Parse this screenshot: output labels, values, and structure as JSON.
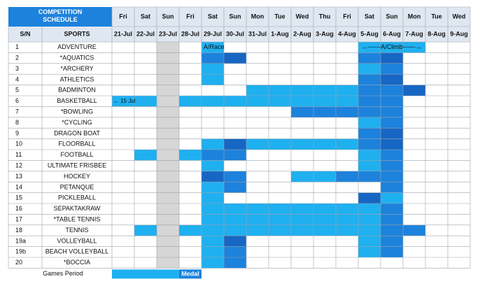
{
  "header": {
    "title": "COMPETITION SCHEDULE",
    "sn": "S/N",
    "sports": "SPORTS",
    "days": [
      "Fri",
      "Sat",
      "Sun",
      "Fri",
      "Sat",
      "Sun",
      "Mon",
      "Tue",
      "Wed",
      "Thu",
      "Fri",
      "Sat",
      "Sun",
      "Mon",
      "Tue",
      "Wed"
    ],
    "dates": [
      "21-Jul",
      "22-Jul",
      "23-Jul",
      "28-Jul",
      "29-Jul",
      "30-Jul",
      "31-Jul",
      "1-Aug",
      "2-Aug",
      "3-Aug",
      "4-Aug",
      "5-Aug",
      "6-Aug",
      "7-Aug",
      "8-Aug",
      "9-Aug"
    ]
  },
  "rows": [
    {
      "sn": "1",
      "sport": "ADVENTURE"
    },
    {
      "sn": "2",
      "sport": "*AQUATICS"
    },
    {
      "sn": "3",
      "sport": "*ARCHERY"
    },
    {
      "sn": "4",
      "sport": "ATHLETICS"
    },
    {
      "sn": "5",
      "sport": "BADMINTON"
    },
    {
      "sn": "6",
      "sport": "BASKETBALL"
    },
    {
      "sn": "7",
      "sport": "*BOWLING"
    },
    {
      "sn": "8",
      "sport": "*CYCLING"
    },
    {
      "sn": "9",
      "sport": "DRAGON BOAT"
    },
    {
      "sn": "10",
      "sport": "FLOORBALL"
    },
    {
      "sn": "11",
      "sport": "FOOTBALL"
    },
    {
      "sn": "12",
      "sport": "ULTIMATE FRISBEE"
    },
    {
      "sn": "13",
      "sport": "HOCKEY"
    },
    {
      "sn": "14",
      "sport": "PETANQUE"
    },
    {
      "sn": "15",
      "sport": "PICKLEBALL"
    },
    {
      "sn": "16",
      "sport": "SEPAKTAKRAW"
    },
    {
      "sn": "17",
      "sport": "*TABLE TENNIS"
    },
    {
      "sn": "18",
      "sport": "TENNIS"
    },
    {
      "sn": "19a",
      "sport": "VOLLEYBALL"
    },
    {
      "sn": "19b",
      "sport": "BEACH VOLLEYBALL"
    },
    {
      "sn": "20",
      "sport": "*BOCCIA"
    }
  ],
  "annotations": {
    "race": "A/Race",
    "climb": "←------A/Climb------→",
    "basketball": "← 15 Jul"
  },
  "footer": {
    "label": "Games Period",
    "medal": "Medal"
  }
}
